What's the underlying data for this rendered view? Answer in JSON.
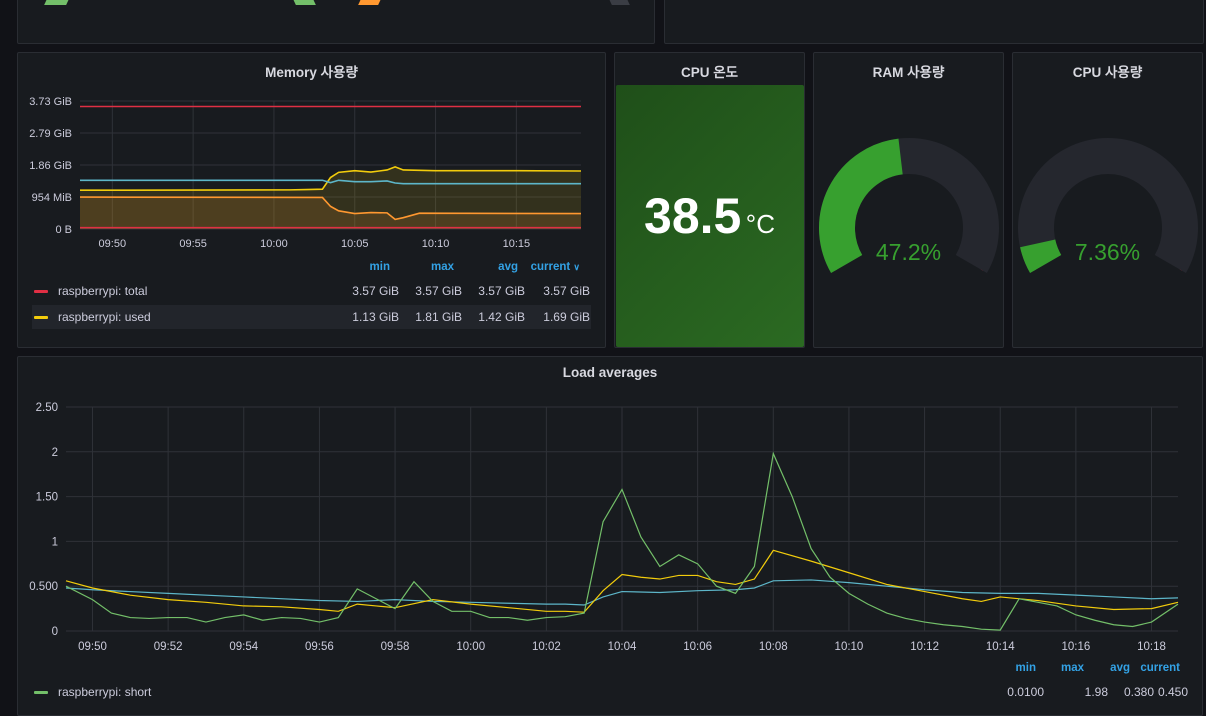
{
  "colors": {
    "background": "#111217",
    "panel": "#181b1f",
    "grid": "#2f3238",
    "axis_text": "#ccccdc",
    "legend_header": "#33a2e5",
    "red": "#e02f44",
    "yellow": "#f2cc0c",
    "orange": "#ff9830",
    "blue": "#5db6c9",
    "green": "#73bf69",
    "gauge_green": "#37a02f",
    "stat_bg": "#26581f"
  },
  "memory_panel": {
    "title": "Memory 사용량",
    "legend_headers": {
      "min": "min",
      "max": "max",
      "avg": "avg",
      "current": "current"
    },
    "legend": [
      {
        "name": "raspberrypi: total",
        "color": "#e02f44",
        "min": "3.57 GiB",
        "max": "3.57 GiB",
        "avg": "3.57 GiB",
        "current": "3.57 GiB"
      },
      {
        "name": "raspberrypi: used",
        "color": "#f2cc0c",
        "min": "1.13 GiB",
        "max": "1.81 GiB",
        "avg": "1.42 GiB",
        "current": "1.69 GiB"
      }
    ]
  },
  "cpu_temp_panel": {
    "title": "CPU 온도",
    "value": "38.5",
    "unit": "°C"
  },
  "ram_panel": {
    "title": "RAM 사용량",
    "value": "47.2%",
    "fraction": 0.472
  },
  "cpu_panel": {
    "title": "CPU 사용량",
    "value": "7.36%",
    "fraction": 0.0736
  },
  "load_panel": {
    "title": "Load averages",
    "legend_headers": {
      "min": "min",
      "max": "max",
      "avg": "avg",
      "current": "current"
    },
    "legend": [
      {
        "name": "raspberrypi: short",
        "color": "#73bf69",
        "min": "0.0100",
        "max": "1.98",
        "avg": "0.380",
        "current": "0.450"
      }
    ]
  },
  "chart_data": [
    {
      "type": "line",
      "title": "Memory 사용량",
      "x_ticks": [
        "09:50",
        "09:55",
        "10:00",
        "10:05",
        "10:10",
        "10:15"
      ],
      "x_range": [
        "09:48",
        "10:19"
      ],
      "y_ticks": [
        "0 B",
        "954 MiB",
        "1.86 GiB",
        "2.79 GiB",
        "3.73 GiB"
      ],
      "ylim": [
        0,
        3.73
      ],
      "y_unit": "GiB",
      "grid": true,
      "series": [
        {
          "name": "raspberrypi: total",
          "color": "#e02f44",
          "fill": false,
          "points": [
            [
              "09:48",
              3.57
            ],
            [
              "10:19",
              3.57
            ]
          ]
        },
        {
          "name": "raspberrypi: used",
          "color": "#f2cc0c",
          "fill": true,
          "points": [
            [
              "09:48",
              1.13
            ],
            [
              "10:01",
              1.14
            ],
            [
              "10:02",
              1.15
            ],
            [
              "10:03",
              1.16
            ],
            [
              "10:03.5",
              1.5
            ],
            [
              "10:04",
              1.65
            ],
            [
              "10:05",
              1.7
            ],
            [
              "10:06",
              1.66
            ],
            [
              "10:07",
              1.72
            ],
            [
              "10:07.5",
              1.81
            ],
            [
              "10:08",
              1.72
            ],
            [
              "10:10",
              1.7
            ],
            [
              "10:15",
              1.7
            ],
            [
              "10:19",
              1.69
            ]
          ]
        },
        {
          "name": "",
          "color": "#5db6c9",
          "fill": false,
          "points": [
            [
              "09:48",
              1.42
            ],
            [
              "10:03",
              1.42
            ],
            [
              "10:03.5",
              1.35
            ],
            [
              "10:04",
              1.42
            ],
            [
              "10:05",
              1.38
            ],
            [
              "10:06",
              1.38
            ],
            [
              "10:07",
              1.4
            ],
            [
              "10:07.5",
              1.34
            ],
            [
              "10:08",
              1.32
            ],
            [
              "10:19",
              1.32
            ]
          ]
        },
        {
          "name": "",
          "color": "#ff9830",
          "fill": true,
          "points": [
            [
              "09:48",
              0.93
            ],
            [
              "10:03",
              0.92
            ],
            [
              "10:03.5",
              0.66
            ],
            [
              "10:04",
              0.53
            ],
            [
              "10:05",
              0.45
            ],
            [
              "10:06",
              0.48
            ],
            [
              "10:07",
              0.47
            ],
            [
              "10:07.5",
              0.28
            ],
            [
              "10:08",
              0.33
            ],
            [
              "10:09",
              0.46
            ],
            [
              "10:19",
              0.45
            ]
          ]
        },
        {
          "name": "",
          "color": "#e02f44",
          "fill": false,
          "points": [
            [
              "09:48",
              0.04
            ],
            [
              "10:19",
              0.04
            ]
          ]
        }
      ]
    },
    {
      "type": "line",
      "title": "Load averages",
      "x_ticks": [
        "09:50",
        "09:52",
        "09:54",
        "09:56",
        "09:58",
        "10:00",
        "10:02",
        "10:04",
        "10:06",
        "10:08",
        "10:10",
        "10:12",
        "10:14",
        "10:16",
        "10:18"
      ],
      "x_range": [
        "09:49.3",
        "10:18.7"
      ],
      "y_ticks": [
        "0",
        "0.500",
        "1",
        "1.50",
        "2",
        "2.50"
      ],
      "ylim": [
        0,
        2.5
      ],
      "grid": true,
      "series": [
        {
          "name": "raspberrypi: short",
          "color": "#73bf69",
          "values_x": [
            "09:49.3",
            "09:50",
            "09:50.5",
            "09:51",
            "09:51.5",
            "09:52",
            "09:52.5",
            "09:53",
            "09:53.5",
            "09:54",
            "09:54.5",
            "09:55",
            "09:55.5",
            "09:56",
            "09:56.5",
            "09:57",
            "09:57.5",
            "09:58",
            "09:58.5",
            "09:59",
            "09:59.5",
            "10:00",
            "10:00.5",
            "10:01",
            "10:01.5",
            "10:02",
            "10:02.5",
            "10:03",
            "10:03.5",
            "10:04",
            "10:04.5",
            "10:05",
            "10:05.5",
            "10:06",
            "10:06.5",
            "10:07",
            "10:07.5",
            "10:08",
            "10:08.5",
            "10:09",
            "10:09.5",
            "10:10",
            "10:10.5",
            "10:11",
            "10:11.5",
            "10:12",
            "10:12.5",
            "10:13",
            "10:13.5",
            "10:14",
            "10:14.5",
            "10:15",
            "10:15.5",
            "10:16",
            "10:16.5",
            "10:17",
            "10:17.5",
            "10:18",
            "10:18.7"
          ],
          "values": [
            0.5,
            0.35,
            0.2,
            0.15,
            0.14,
            0.15,
            0.15,
            0.1,
            0.15,
            0.18,
            0.12,
            0.15,
            0.14,
            0.1,
            0.15,
            0.47,
            0.36,
            0.25,
            0.55,
            0.33,
            0.22,
            0.22,
            0.15,
            0.15,
            0.12,
            0.15,
            0.16,
            0.2,
            1.22,
            1.58,
            1.05,
            0.72,
            0.85,
            0.75,
            0.5,
            0.42,
            0.72,
            1.98,
            1.5,
            0.92,
            0.6,
            0.42,
            0.3,
            0.2,
            0.14,
            0.1,
            0.07,
            0.05,
            0.02,
            0.01,
            0.36,
            0.32,
            0.28,
            0.18,
            0.12,
            0.07,
            0.05,
            0.1,
            0.3,
            0.45
          ]
        },
        {
          "name": "",
          "color": "#f2cc0c",
          "values_x": [
            "09:49.3",
            "09:50",
            "09:51",
            "09:52",
            "09:53",
            "09:54",
            "09:55",
            "09:56",
            "09:56.5",
            "09:57",
            "09:57.5",
            "09:58",
            "09:59",
            "10:00",
            "10:01",
            "10:02",
            "10:02.5",
            "10:03",
            "10:03.5",
            "10:04",
            "10:04.5",
            "10:05",
            "10:05.5",
            "10:06",
            "10:06.5",
            "10:07",
            "10:07.5",
            "10:08",
            "10:09",
            "10:10",
            "10:11",
            "10:12",
            "10:13",
            "10:13.5",
            "10:14",
            "10:15",
            "10:16",
            "10:17",
            "10:18",
            "10:18.7"
          ],
          "values": [
            0.56,
            0.48,
            0.4,
            0.35,
            0.32,
            0.28,
            0.27,
            0.24,
            0.22,
            0.3,
            0.28,
            0.26,
            0.35,
            0.3,
            0.26,
            0.22,
            0.22,
            0.21,
            0.45,
            0.63,
            0.6,
            0.58,
            0.62,
            0.62,
            0.55,
            0.52,
            0.58,
            0.9,
            0.78,
            0.65,
            0.52,
            0.44,
            0.36,
            0.33,
            0.38,
            0.34,
            0.28,
            0.24,
            0.25,
            0.32
          ]
        },
        {
          "name": "",
          "color": "#5db6c9",
          "values_x": [
            "09:49.3",
            "09:50",
            "09:52",
            "09:54",
            "09:56",
            "09:57",
            "09:58",
            "09:59",
            "10:00",
            "10:01",
            "10:02",
            "10:02.5",
            "10:03",
            "10:03.5",
            "10:04",
            "10:05",
            "10:06",
            "10:07",
            "10:07.5",
            "10:08",
            "10:09",
            "10:10",
            "10:11",
            "10:12",
            "10:13",
            "10:14",
            "10:15",
            "10:16",
            "10:17",
            "10:18",
            "10:18.7"
          ],
          "values": [
            0.48,
            0.46,
            0.42,
            0.38,
            0.34,
            0.33,
            0.35,
            0.33,
            0.32,
            0.31,
            0.3,
            0.3,
            0.29,
            0.38,
            0.44,
            0.43,
            0.45,
            0.46,
            0.48,
            0.56,
            0.57,
            0.54,
            0.5,
            0.46,
            0.43,
            0.42,
            0.42,
            0.4,
            0.38,
            0.36,
            0.37
          ]
        }
      ]
    },
    {
      "type": "gauge",
      "title": "RAM 사용량",
      "value": 47.2,
      "unit": "%",
      "range": [
        0,
        100
      ]
    },
    {
      "type": "gauge",
      "title": "CPU 사용량",
      "value": 7.36,
      "unit": "%",
      "range": [
        0,
        100
      ]
    }
  ]
}
